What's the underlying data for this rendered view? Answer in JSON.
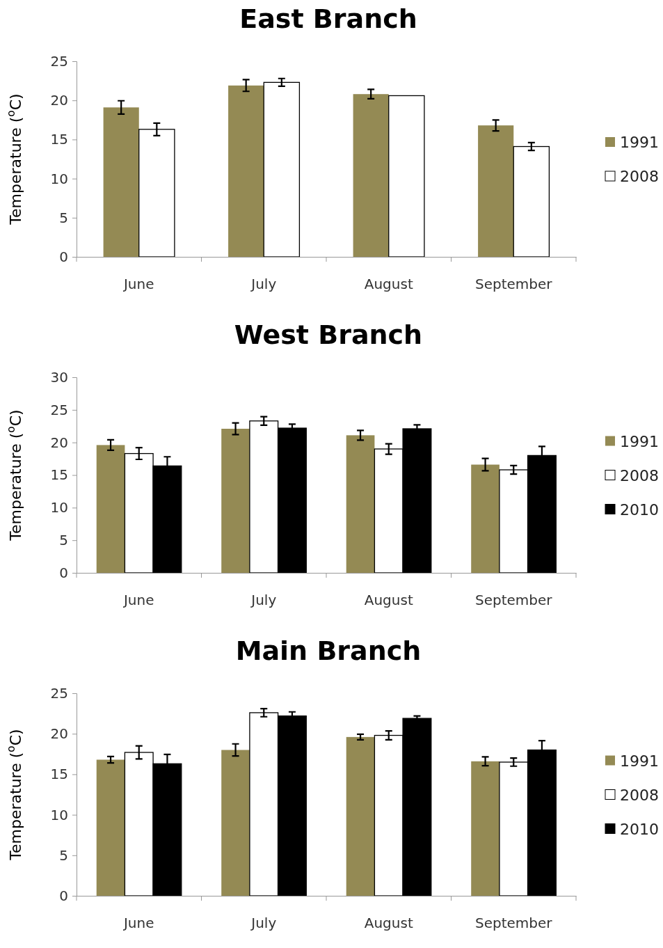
{
  "chart_data": [
    {
      "type": "bar",
      "title": "East Branch",
      "ylabel": "Temperature ($^{o}$C)",
      "categories": [
        "June",
        "July",
        "August",
        "September"
      ],
      "ylim": [
        0,
        25
      ],
      "yticks": [
        0,
        5,
        10,
        15,
        20,
        25
      ],
      "legend": "right",
      "series": [
        {
          "name": "1991",
          "color": "#948a54",
          "values": [
            19.1,
            21.9,
            20.8,
            16.8
          ],
          "errors": [
            0.85,
            0.75,
            0.6,
            0.7
          ]
        },
        {
          "name": "2008",
          "color": "#ffffff",
          "values": [
            16.3,
            22.3,
            20.6,
            14.1
          ],
          "errors": [
            0.8,
            0.5,
            null,
            0.5
          ]
        }
      ]
    },
    {
      "type": "bar",
      "title": "West Branch",
      "ylabel": "Temperature ($^{o}$C)",
      "categories": [
        "June",
        "July",
        "August",
        "September"
      ],
      "ylim": [
        0,
        30
      ],
      "yticks": [
        0,
        5,
        10,
        15,
        20,
        25,
        30
      ],
      "legend": "right",
      "series": [
        {
          "name": "1991",
          "color": "#948a54",
          "values": [
            19.6,
            22.1,
            21.1,
            16.6
          ],
          "errors": [
            0.8,
            0.9,
            0.75,
            0.95
          ]
        },
        {
          "name": "2008",
          "color": "#ffffff",
          "values": [
            18.3,
            23.3,
            19.0,
            15.8
          ],
          "errors": [
            0.9,
            0.65,
            0.8,
            0.65
          ]
        },
        {
          "name": "2010",
          "color": "#000000",
          "values": [
            16.4,
            22.2,
            22.1,
            18.0
          ],
          "errors": [
            1.4,
            0.6,
            0.6,
            1.4
          ]
        }
      ]
    },
    {
      "type": "bar",
      "title": "Main Branch",
      "ylabel": "Temperature ($^{o}$C)",
      "categories": [
        "June",
        "July",
        "August",
        "September"
      ],
      "ylim": [
        0,
        25
      ],
      "yticks": [
        0,
        5,
        10,
        15,
        20,
        25
      ],
      "legend": "right",
      "series": [
        {
          "name": "1991",
          "color": "#948a54",
          "values": [
            16.8,
            18.0,
            19.6,
            16.6
          ],
          "errors": [
            0.4,
            0.75,
            0.35,
            0.55
          ]
        },
        {
          "name": "2008",
          "color": "#ffffff",
          "values": [
            17.7,
            22.6,
            19.8,
            16.5
          ],
          "errors": [
            0.8,
            0.5,
            0.55,
            0.5
          ]
        },
        {
          "name": "2010",
          "color": "#000000",
          "values": [
            16.3,
            22.2,
            21.9,
            18.0
          ],
          "errors": [
            1.15,
            0.5,
            0.3,
            1.15
          ]
        }
      ]
    }
  ]
}
